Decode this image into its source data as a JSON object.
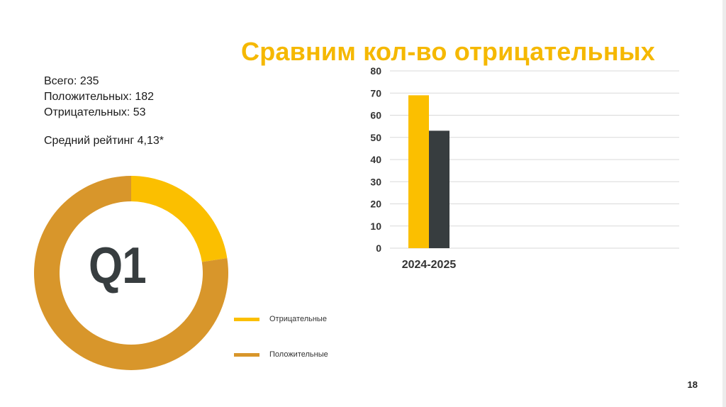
{
  "title": "Сравним кол-во отрицательных",
  "stats": {
    "total": "Всего: 235",
    "positive": "Положительных: 182",
    "negative": "Отрицательных: 53",
    "rating": "Средний рейтинг 4,13*"
  },
  "q_label": "Q1",
  "page_number": "18",
  "colors": {
    "negative": "#fbbf00",
    "positive": "#d8962b",
    "dark": "#373d3f",
    "title": "#f5b800"
  },
  "chart_data": [
    {
      "type": "pie",
      "categories": [
        "Отрицательные",
        "Положительные"
      ],
      "values": [
        53,
        182
      ],
      "colors": [
        "#fbbf00",
        "#d8962b"
      ],
      "legend_position": "right"
    },
    {
      "type": "bar",
      "categories": [
        "2024-2025"
      ],
      "series": [
        {
          "values": [
            69
          ],
          "color": "#fbbf00"
        },
        {
          "values": [
            53
          ],
          "color": "#373d3f"
        }
      ],
      "ylim": [
        0,
        80
      ],
      "yticks": [
        0,
        10,
        20,
        30,
        40,
        50,
        60,
        70,
        80
      ],
      "grid": true
    }
  ]
}
